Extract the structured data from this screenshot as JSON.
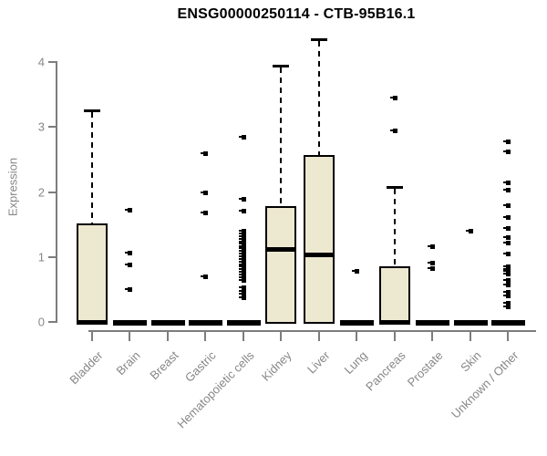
{
  "chart_data": {
    "type": "boxplot",
    "title": "ENSG00000250114 - CTB-95B16.1",
    "xlabel": "",
    "ylabel": "Expression",
    "ylim": [
      0,
      4.35
    ],
    "yticks": [
      0,
      1,
      2,
      3,
      4
    ],
    "grid": false,
    "legend": false,
    "box_fill": "#EDE8D0",
    "box_border": "#000000",
    "axis_color": "#7d7d7d",
    "label_color": "#878787",
    "title_color": "#000000",
    "categories": [
      "Bladder",
      "Brain",
      "Breast",
      "Gastric",
      "Hematopoietic cells",
      "Kidney",
      "Liver",
      "Lung",
      "Pancreas",
      "Prostate",
      "Skin",
      "Unknown / Other"
    ],
    "series": [
      {
        "category": "Bladder",
        "min": 0,
        "q1": 0,
        "median": 0,
        "q3": 1.52,
        "whisker_high": 3.26,
        "outliers": []
      },
      {
        "category": "Brain",
        "min": 0,
        "q1": 0,
        "median": 0,
        "q3": 0,
        "whisker_high": 0,
        "outliers": [
          1.73,
          1.06,
          0.88,
          0.5
        ]
      },
      {
        "category": "Breast",
        "min": 0,
        "q1": 0,
        "median": 0,
        "q3": 0,
        "whisker_high": 0,
        "outliers": []
      },
      {
        "category": "Gastric",
        "min": 0,
        "q1": 0,
        "median": 0,
        "q3": 0,
        "whisker_high": 0,
        "outliers": [
          2.6,
          1.99,
          1.68,
          0.7
        ]
      },
      {
        "category": "Hematopoietic cells",
        "min": 0,
        "q1": 0,
        "median": 0,
        "q3": 0,
        "whisker_high": 0,
        "outliers": [
          2.85,
          1.9,
          1.71,
          1.4,
          1.36,
          1.32,
          1.28,
          1.24,
          1.21,
          1.17,
          1.13,
          1.09,
          1.05,
          1.01,
          0.97,
          0.93,
          0.89,
          0.85,
          0.81,
          0.77,
          0.73,
          0.69,
          0.65,
          0.53,
          0.48,
          0.43,
          0.38
        ]
      },
      {
        "category": "Kidney",
        "min": 0,
        "q1": 0,
        "median": 1.12,
        "q3": 1.78,
        "whisker_high": 3.95,
        "outliers": []
      },
      {
        "category": "Liver",
        "min": 0,
        "q1": 0,
        "median": 1.04,
        "q3": 2.57,
        "whisker_high": 4.35,
        "outliers": []
      },
      {
        "category": "Lung",
        "min": 0,
        "q1": 0,
        "median": 0,
        "q3": 0,
        "whisker_high": 0,
        "outliers": [
          0.78
        ]
      },
      {
        "category": "Pancreas",
        "min": 0,
        "q1": 0,
        "median": 0,
        "q3": 0.86,
        "whisker_high": 2.08,
        "outliers": [
          3.45,
          2.95
        ]
      },
      {
        "category": "Prostate",
        "min": 0,
        "q1": 0,
        "median": 0,
        "q3": 0,
        "whisker_high": 0,
        "outliers": [
          1.16,
          0.91,
          0.83
        ]
      },
      {
        "category": "Skin",
        "min": 0,
        "q1": 0,
        "median": 0,
        "q3": 0,
        "whisker_high": 0,
        "outliers": [
          1.4
        ]
      },
      {
        "category": "Unknown / Other",
        "min": 0,
        "q1": 0,
        "median": 0,
        "q3": 0,
        "whisker_high": 0,
        "outliers": [
          2.78,
          2.62,
          2.15,
          2.04,
          1.8,
          1.62,
          1.45,
          1.31,
          1.22,
          1.05,
          0.86,
          0.82,
          0.78,
          0.74,
          0.65,
          0.58,
          0.46,
          0.41,
          0.29,
          0.24
        ]
      }
    ]
  }
}
